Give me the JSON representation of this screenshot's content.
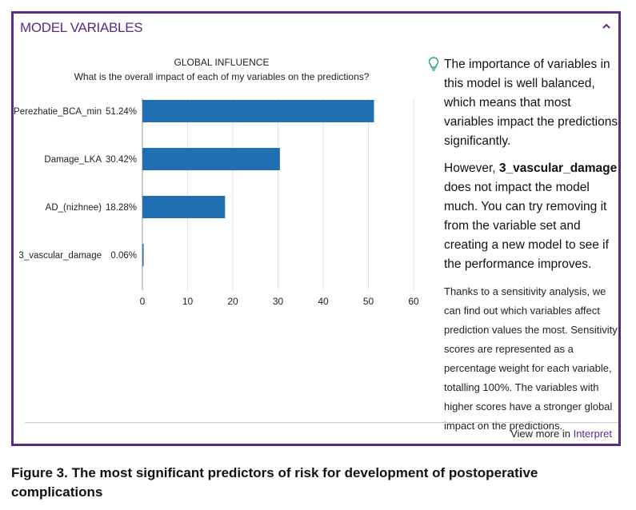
{
  "panel": {
    "title": "MODEL VARIABLES",
    "collapse_icon": "chevron-up-icon"
  },
  "chart": {
    "title": "GLOBAL INFLUENCE",
    "subtitle": "What is the overall impact of each of my variables on the predictions?"
  },
  "chart_data": {
    "type": "bar",
    "orientation": "horizontal",
    "title": "GLOBAL INFLUENCE",
    "subtitle": "What is the overall impact of each of my variables on the predictions?",
    "categories": [
      "Perezhatie_BCA_min",
      "Damage_LKA",
      "AD_(nizhnee)",
      "3_vascular_damage"
    ],
    "values": [
      51.24,
      30.42,
      18.28,
      0.06
    ],
    "value_labels": [
      "51.24%",
      "30.42%",
      "18.28%",
      "0.06%"
    ],
    "xlim": [
      0,
      60
    ],
    "xticks": [
      "0",
      "10",
      "20",
      "30",
      "40",
      "50",
      "60"
    ],
    "grid": "vertical",
    "bar_color": "#1f6fb2"
  },
  "insights": {
    "icon": "lightbulb-icon",
    "main": "The importance of variables in this model is well balanced, which means that most variables impact the predictions significantly.",
    "second_prefix": "However, ",
    "second_bold": "3_vascular_damage",
    "second_suffix": " does not impact the model much. You can try removing it from the variable set and creating a new model to see if the performance improves.",
    "detail": "Thanks to a sensitivity analysis, we can find out which variables affect prediction values the most. Sensitivity scores are represented as a percentage weight for each variable, totalling 100%. The variables with higher scores have a stronger global impact on the predictions."
  },
  "footer": {
    "prefix": "View more in ",
    "link": "Interpret"
  },
  "caption": "Figure 3. The most significant predictors of risk for development of postoperative complications",
  "colors": {
    "accent": "#5b2a86",
    "bar": "#1f6fb2"
  }
}
